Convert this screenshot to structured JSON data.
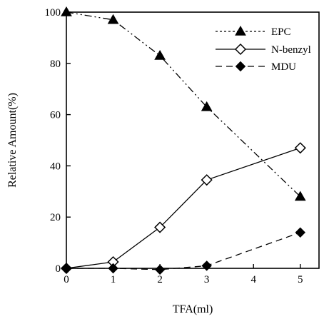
{
  "chart_data": {
    "type": "line",
    "xlabel": "TFA(ml)",
    "ylabel": "Relative Amount(%)",
    "xlim": [
      0,
      5.4
    ],
    "ylim": [
      0,
      100
    ],
    "xticks": [
      0,
      1,
      2,
      3,
      4,
      5
    ],
    "yticks": [
      0,
      20,
      40,
      60,
      80,
      100
    ],
    "grid": false,
    "legend_position": "top-right",
    "series": [
      {
        "name": "EPC",
        "marker": "filled-triangle",
        "line_style": "dash-dot-dot",
        "color": "#000000",
        "x": [
          0,
          1,
          2,
          3,
          5
        ],
        "y": [
          100,
          97,
          83,
          63,
          28
        ]
      },
      {
        "name": "N-benzyl",
        "marker": "open-diamond",
        "line_style": "solid",
        "color": "#000000",
        "x": [
          0,
          1,
          2,
          3,
          5
        ],
        "y": [
          0,
          2.5,
          16,
          34.5,
          47
        ]
      },
      {
        "name": "MDU",
        "marker": "filled-diamond",
        "line_style": "dashed",
        "color": "#000000",
        "x": [
          0,
          1,
          2,
          3,
          5
        ],
        "y": [
          0,
          0,
          -0.5,
          1,
          14
        ]
      }
    ]
  }
}
